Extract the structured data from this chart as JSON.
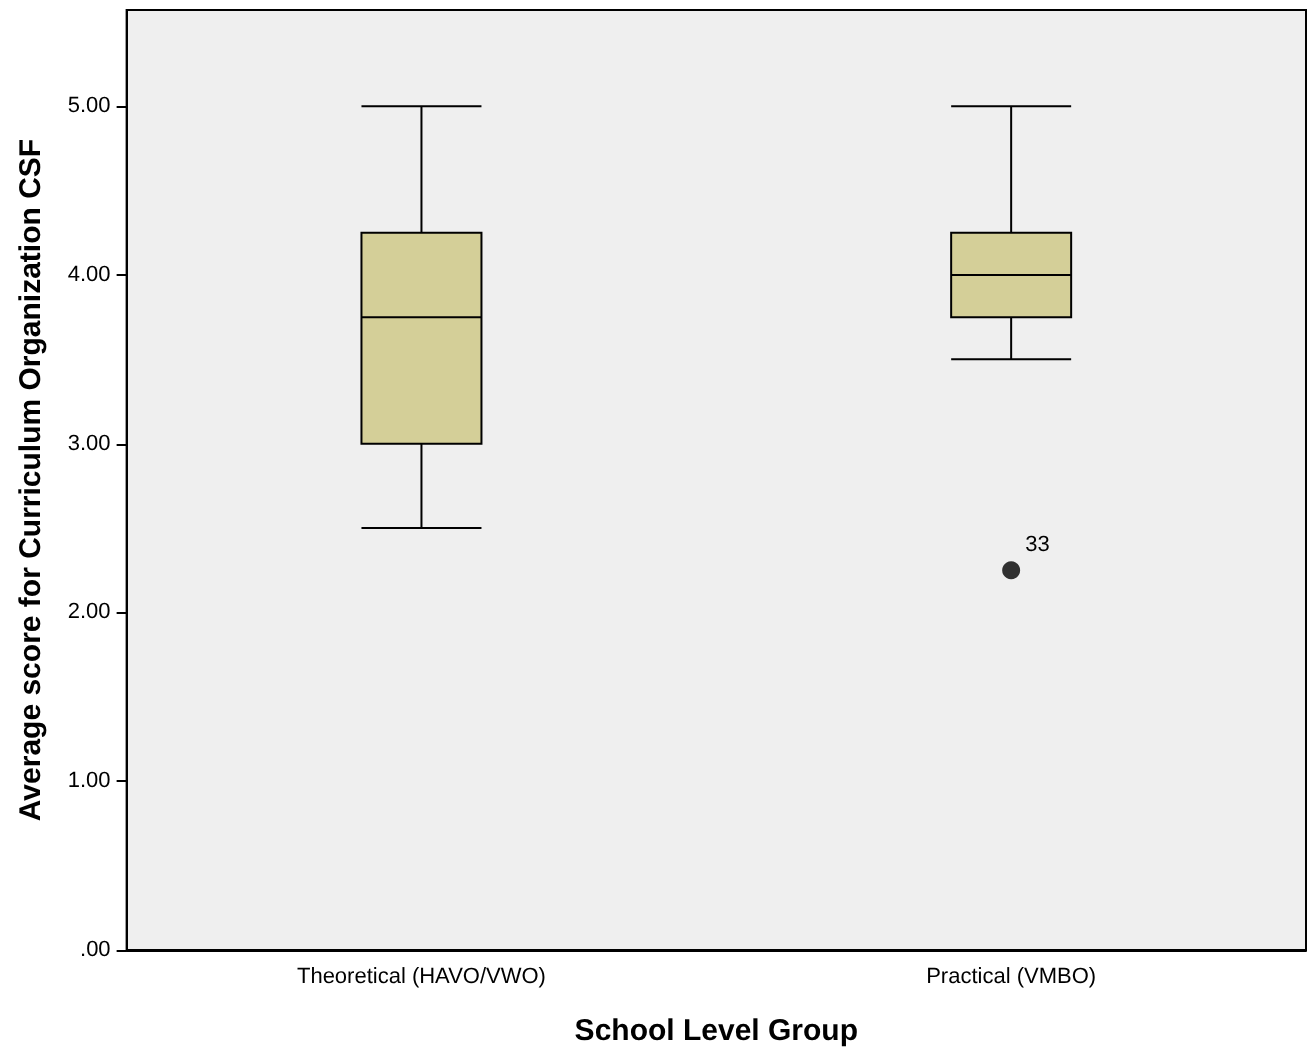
{
  "chart_data": {
    "type": "box",
    "xlabel": "School Level Group",
    "ylabel": "Average score for Curriculum Organization CSF",
    "categories": [
      "Theoretical (HAVO/VWO)",
      "Practical (VMBO)"
    ],
    "color": "#d4cf98",
    "boxes": [
      {
        "low": 2.5,
        "q1": 3.0,
        "median": 3.75,
        "q3": 4.25,
        "high": 5.0
      },
      {
        "low": 3.5,
        "q1": 3.75,
        "median": 4.0,
        "q3": 4.25,
        "high": 5.0,
        "outliers": [
          2.25
        ]
      }
    ],
    "ylim": [
      0,
      5.57
    ],
    "yticks": [
      {
        "value": 0,
        "label": ".00"
      },
      {
        "value": 1,
        "label": "1.00"
      },
      {
        "value": 2,
        "label": "2.00"
      },
      {
        "value": 3,
        "label": "3.00"
      },
      {
        "value": 4,
        "label": "4.00"
      },
      {
        "value": 5,
        "label": "5.00"
      }
    ],
    "annotations": [
      "33"
    ],
    "grid": false
  }
}
